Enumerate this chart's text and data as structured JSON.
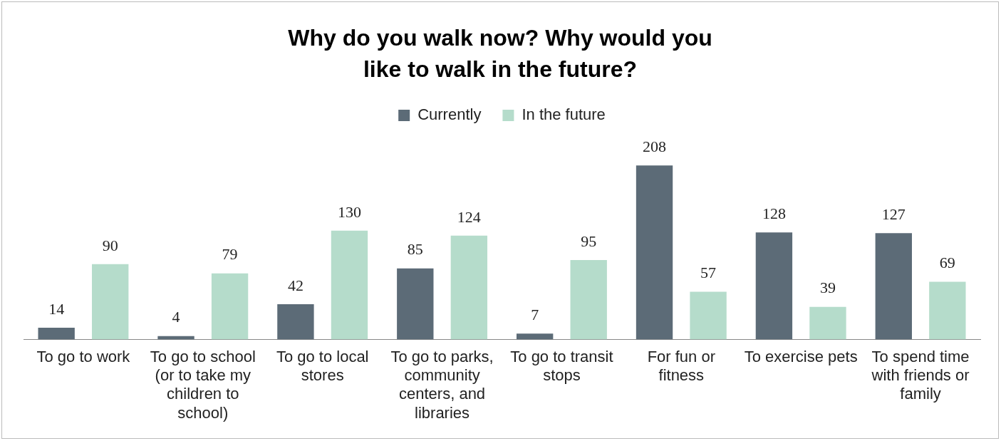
{
  "chart_data": {
    "type": "bar",
    "title": "Why do you walk now? Why would you like to walk in the future?",
    "categories": [
      "To go to work",
      "To go to school (or to take my children to school)",
      "To go to local stores",
      "To go to parks, community centers, and libraries",
      "To go to transit stops",
      "For fun or fitness",
      "To exercise pets",
      "To spend time with friends or family"
    ],
    "series": [
      {
        "name": "Currently",
        "color": "#5c6b77",
        "values": [
          14,
          4,
          42,
          85,
          7,
          208,
          128,
          127
        ]
      },
      {
        "name": "In the future",
        "color": "#b5dccb",
        "values": [
          90,
          79,
          130,
          124,
          95,
          57,
          39,
          69
        ]
      }
    ],
    "data_labels": true,
    "legend": "top",
    "grid": false
  }
}
